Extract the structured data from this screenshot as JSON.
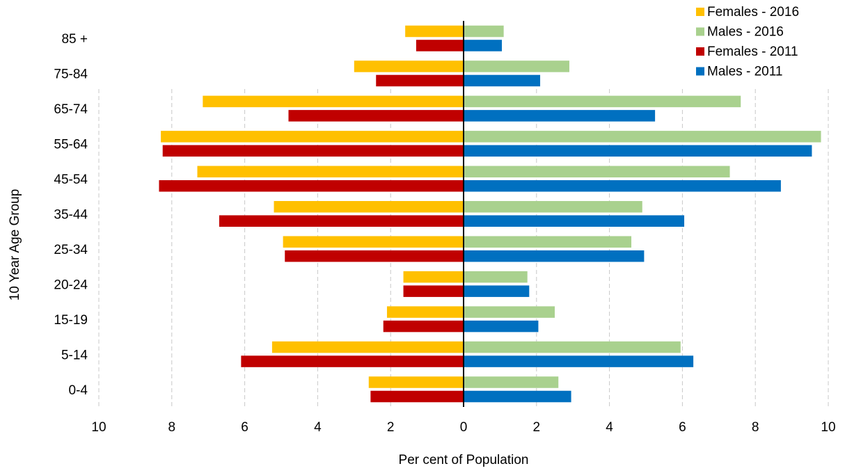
{
  "chart_data": {
    "type": "bar",
    "orientation": "horizontal",
    "layout": "population-pyramid",
    "categories": [
      "85 +",
      "75-84",
      "65-74",
      "55-64",
      "45-54",
      "35-44",
      "25-34",
      "20-24",
      "15-19",
      "5-14",
      "0-4"
    ],
    "series": [
      {
        "name": "Females - 2016",
        "side": "left",
        "color": "#FFC000",
        "values": [
          1.6,
          3.0,
          7.15,
          8.3,
          7.3,
          5.2,
          4.95,
          1.65,
          2.1,
          5.25,
          2.6
        ]
      },
      {
        "name": "Males - 2016",
        "side": "right",
        "color": "#A9D18E",
        "values": [
          1.1,
          2.9,
          7.6,
          9.8,
          7.3,
          4.9,
          4.6,
          1.75,
          2.5,
          5.95,
          2.6
        ]
      },
      {
        "name": "Females - 2011",
        "side": "left",
        "color": "#C00000",
        "values": [
          1.3,
          2.4,
          4.8,
          8.25,
          8.35,
          6.7,
          4.9,
          1.65,
          2.2,
          6.1,
          2.55
        ]
      },
      {
        "name": "Males - 2011",
        "side": "right",
        "color": "#0070C0",
        "values": [
          1.05,
          2.1,
          5.25,
          9.55,
          8.7,
          6.05,
          4.95,
          1.8,
          2.05,
          6.3,
          2.95
        ]
      }
    ],
    "xlabel": "Per cent of Population",
    "ylabel": "10 Year Age Group",
    "xlim": [
      -10,
      10
    ],
    "x_ticks": [
      {
        "value": -10,
        "label": "10"
      },
      {
        "value": -8,
        "label": "8"
      },
      {
        "value": -6,
        "label": "6"
      },
      {
        "value": -4,
        "label": "4"
      },
      {
        "value": -2,
        "label": "2"
      },
      {
        "value": 0,
        "label": "0"
      },
      {
        "value": 2,
        "label": "2"
      },
      {
        "value": 4,
        "label": "4"
      },
      {
        "value": 6,
        "label": "6"
      },
      {
        "value": 8,
        "label": "8"
      },
      {
        "value": 10,
        "label": "10"
      }
    ],
    "grid": true,
    "legend_position": "top-right"
  }
}
